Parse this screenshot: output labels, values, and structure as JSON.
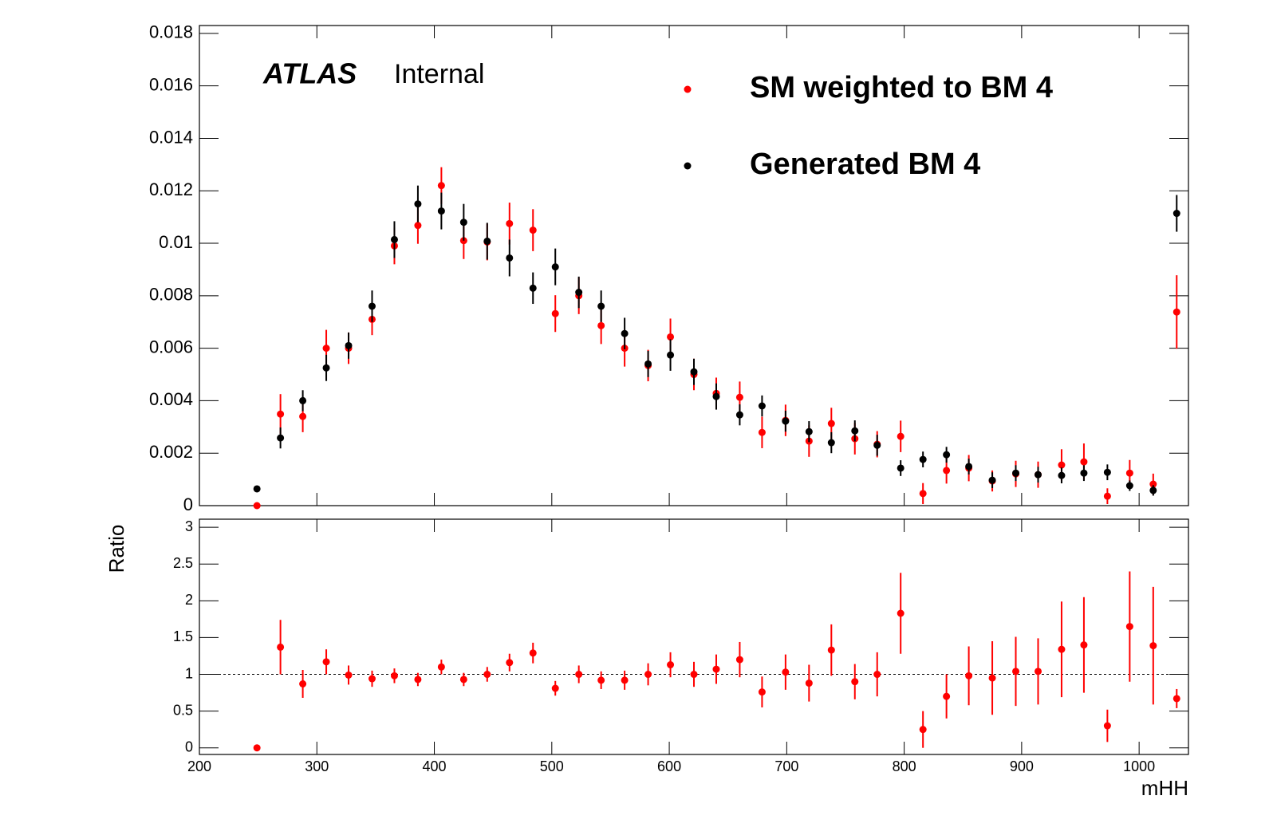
{
  "chart_data": [
    {
      "type": "scatter",
      "annotations": [
        "ATLAS",
        "Internal"
      ],
      "legend": "upper right",
      "x": [
        249,
        269,
        288,
        308,
        327,
        347,
        366,
        386,
        406,
        425,
        445,
        464,
        484,
        503,
        523,
        542,
        562,
        582,
        601,
        621,
        640,
        660,
        679,
        699,
        719,
        738,
        758,
        777,
        797,
        816,
        836,
        855,
        875,
        895,
        914,
        934,
        953,
        973,
        992,
        1012,
        1032
      ],
      "xlim": [
        200,
        1042
      ],
      "ylim": [
        0,
        0.0183
      ],
      "yticks": [
        0,
        0.002,
        0.004,
        0.006,
        0.008,
        0.01,
        0.012,
        0.014,
        0.016,
        0.018
      ],
      "series": [
        {
          "name": "SM weighted to BM 4",
          "color": "#ff0000",
          "values": [
            0,
            0.00349,
            0.0034,
            0.006,
            0.006,
            0.0071,
            0.0099,
            0.01068,
            0.0122,
            0.0101,
            0.01005,
            0.01075,
            0.0105,
            0.00732,
            0.008,
            0.00686,
            0.006,
            0.00534,
            0.00643,
            0.005,
            0.00428,
            0.00413,
            0.00279,
            0.00325,
            0.00246,
            0.00313,
            0.00255,
            0.00234,
            0.00264,
            0.00046,
            0.00134,
            0.00143,
            0.00094,
            0.00121,
            0.00118,
            0.00155,
            0.00167,
            0.00036,
            0.00124,
            0.00082,
            0.00738
          ],
          "errors": [
            0,
            0.00076,
            0.0006,
            0.0007,
            0.0006,
            0.0006,
            0.0007,
            0.0007,
            0.0007,
            0.0007,
            0.0007,
            0.0008,
            0.0008,
            0.0007,
            0.0007,
            0.0007,
            0.0007,
            0.0006,
            0.0007,
            0.0006,
            0.0006,
            0.0006,
            0.0006,
            0.0006,
            0.0006,
            0.0006,
            0.0006,
            0.0005,
            0.0006,
            0.0004,
            0.0005,
            0.0005,
            0.0004,
            0.0005,
            0.0005,
            0.0006,
            0.0007,
            0.0003,
            0.0005,
            0.0004,
            0.0014
          ]
        },
        {
          "name": "Generated BM 4",
          "color": "#000000",
          "values": [
            0.00064,
            0.00258,
            0.004,
            0.00525,
            0.0061,
            0.0076,
            0.01014,
            0.0115,
            0.01123,
            0.0108,
            0.01008,
            0.00944,
            0.00829,
            0.0091,
            0.00813,
            0.0076,
            0.00656,
            0.0054,
            0.00574,
            0.0051,
            0.00416,
            0.00346,
            0.0038,
            0.00322,
            0.00282,
            0.0024,
            0.00285,
            0.0023,
            0.00143,
            0.00176,
            0.00194,
            0.00149,
            0.00097,
            0.00124,
            0.00118,
            0.00115,
            0.00124,
            0.00127,
            0.00076,
            0.00058,
            0.01114
          ],
          "errors": [
            8e-05,
            0.0004,
            0.0004,
            0.0005,
            0.0005,
            0.0006,
            0.0007,
            0.0007,
            0.0007,
            0.0007,
            0.0007,
            0.0007,
            0.0006,
            0.0007,
            0.0006,
            0.0006,
            0.0006,
            0.0005,
            0.0006,
            0.0005,
            0.0005,
            0.0004,
            0.0004,
            0.0004,
            0.0004,
            0.0004,
            0.0004,
            0.0004,
            0.0003,
            0.0003,
            0.0003,
            0.0003,
            0.0003,
            0.0003,
            0.0003,
            0.0003,
            0.0003,
            0.0003,
            0.0002,
            0.0002,
            0.0007
          ]
        }
      ]
    },
    {
      "type": "scatter",
      "x_label": "mHH",
      "y_label": "Ratio",
      "x": [
        249,
        269,
        288,
        308,
        327,
        347,
        366,
        386,
        406,
        425,
        445,
        464,
        484,
        503,
        523,
        542,
        562,
        582,
        601,
        621,
        640,
        660,
        679,
        699,
        719,
        738,
        758,
        777,
        797,
        816,
        836,
        855,
        875,
        895,
        914,
        934,
        953,
        973,
        992,
        1012,
        1032
      ],
      "xlim": [
        200,
        1042
      ],
      "xticks": [
        200,
        300,
        400,
        500,
        600,
        700,
        800,
        900,
        1000
      ],
      "ylim": [
        -0.09,
        3.11
      ],
      "yticks": [
        0,
        0.5,
        1,
        1.5,
        2,
        2.5,
        3
      ],
      "reference_line": 1,
      "series": [
        {
          "color": "#ff0000",
          "values": [
            0,
            1.37,
            0.87,
            1.17,
            0.99,
            0.94,
            0.98,
            0.93,
            1.1,
            0.93,
            1.0,
            1.16,
            1.29,
            0.81,
            1.0,
            0.92,
            0.92,
            1.0,
            1.13,
            1.0,
            1.07,
            1.2,
            0.76,
            1.03,
            0.88,
            1.33,
            0.9,
            1.0,
            1.83,
            0.25,
            0.7,
            0.98,
            0.95,
            1.04,
            1.04,
            1.34,
            1.4,
            0.3,
            1.65,
            1.39,
            0.67
          ],
          "errors": [
            0,
            0.37,
            0.19,
            0.17,
            0.13,
            0.11,
            0.1,
            0.09,
            0.1,
            0.09,
            0.1,
            0.12,
            0.14,
            0.1,
            0.12,
            0.12,
            0.13,
            0.15,
            0.17,
            0.17,
            0.2,
            0.24,
            0.21,
            0.24,
            0.25,
            0.35,
            0.24,
            0.3,
            0.55,
            0.25,
            0.3,
            0.4,
            0.5,
            0.47,
            0.45,
            0.65,
            0.65,
            0.22,
            0.75,
            0.8,
            0.13
          ]
        }
      ]
    }
  ]
}
